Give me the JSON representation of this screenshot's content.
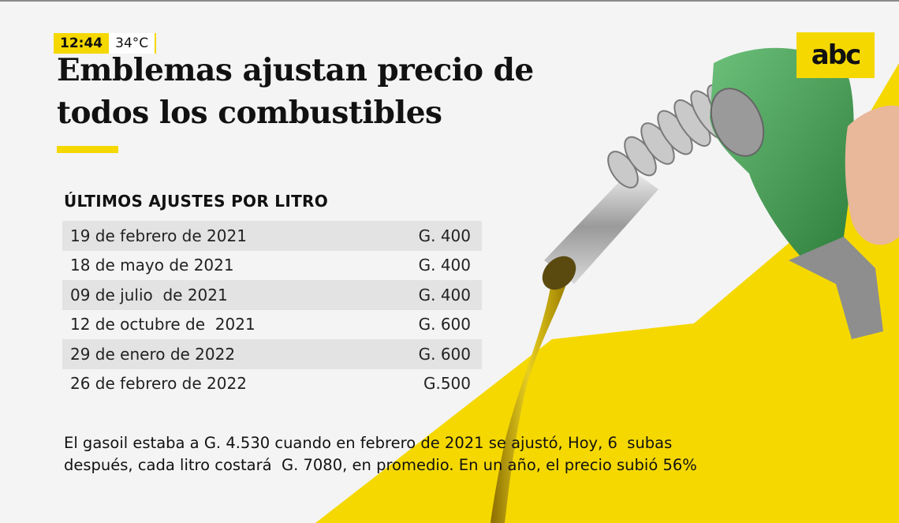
{
  "status": {
    "time": "12:44",
    "temperature": "34°C"
  },
  "headline": "Emblemas ajustan precio de todos los combustibles",
  "brand": {
    "logo_text": "abc",
    "accent": "#f5d800"
  },
  "adjustments": {
    "title": "ÚLTIMOS AJUSTES POR LITRO",
    "rows": [
      {
        "date": "19 de febrero de 2021",
        "amount": "G. 400"
      },
      {
        "date": "18 de mayo de 2021",
        "amount": "G. 400"
      },
      {
        "date": "09 de julio  de 2021",
        "amount": "G. 400"
      },
      {
        "date": "12 de octubre de  2021",
        "amount": "G. 600"
      },
      {
        "date": "29 de enero de 2022",
        "amount": "G. 600"
      },
      {
        "date": "26 de febrero de 2022",
        "amount": "G.500"
      }
    ]
  },
  "summary": {
    "line1": "El gasoil estaba a G. 4.530 cuando en febrero de 2021 se ajustó, Hoy, 6  subas",
    "line2": "después, cada litro costará  G. 7080, en promedio. En un año, el precio subió 56%"
  },
  "illustration": {
    "icon": "fuel-nozzle-icon",
    "colors": {
      "handle": "#4caa5a",
      "fuel": "#d4b800",
      "metal": "#b8b8b8"
    }
  }
}
